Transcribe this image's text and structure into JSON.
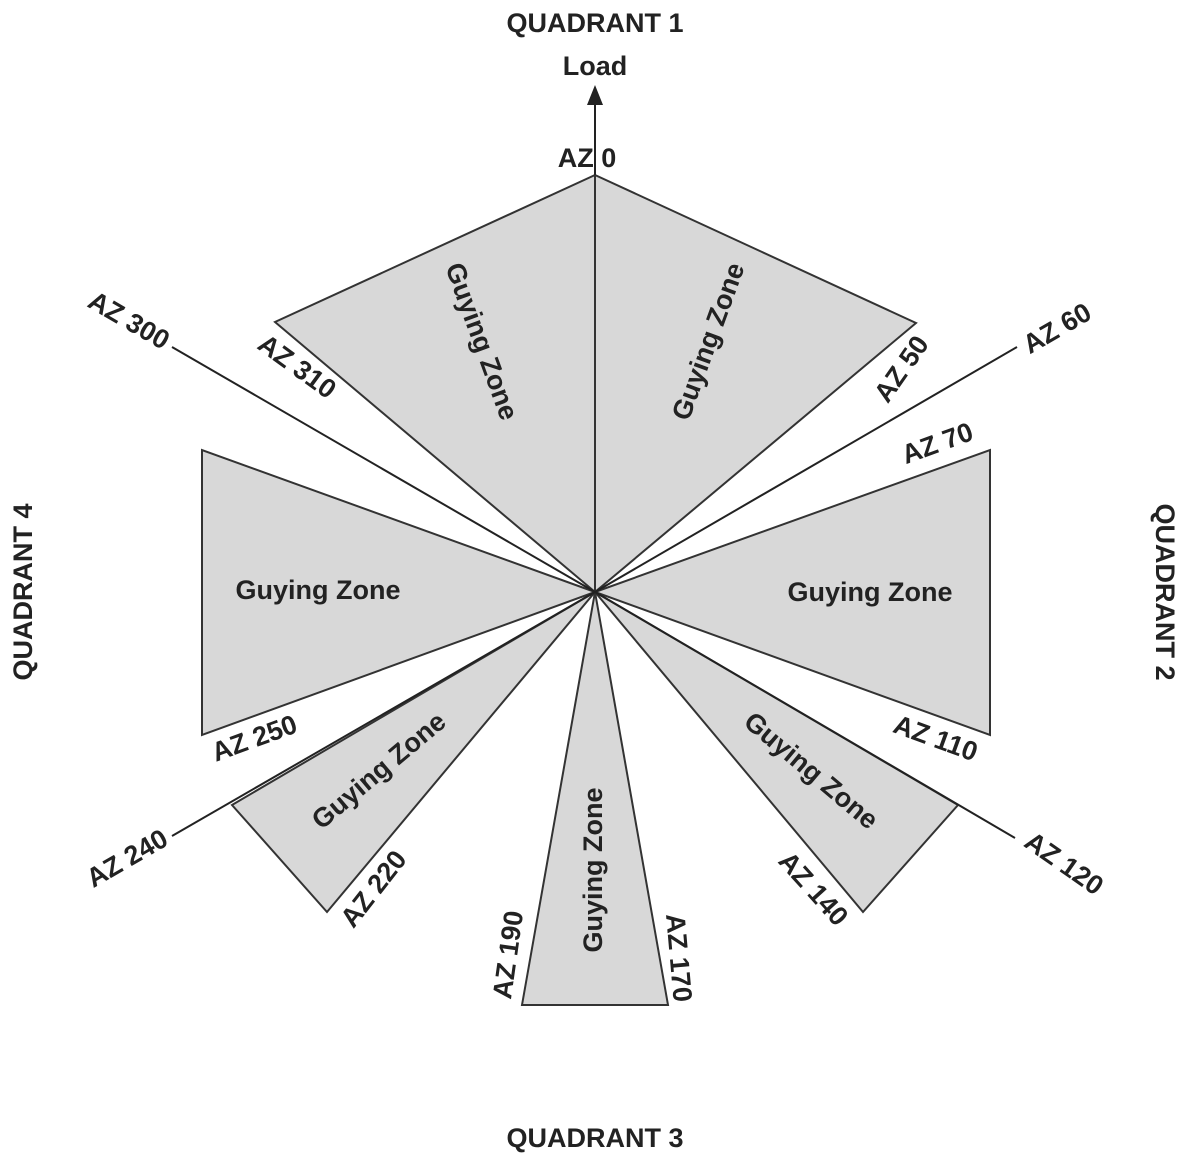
{
  "quadrants": [
    "QUADRANT 1",
    "QUADRANT 2",
    "QUADRANT 3",
    "QUADRANT 4"
  ],
  "load": "Load",
  "azimuths": [
    "AZ 0",
    "AZ 300",
    "AZ 310",
    "AZ 50",
    "AZ 60",
    "AZ 70",
    "AZ 110",
    "AZ 120",
    "AZ 140",
    "AZ 170",
    "AZ 190",
    "AZ 220",
    "AZ 240",
    "AZ 250"
  ],
  "zones": [
    "Guying Zone",
    "Guying Zone",
    "Guying Zone",
    "Guying Zone",
    "Guying Zone",
    "Guying Zone",
    "Guying Zone"
  ]
}
